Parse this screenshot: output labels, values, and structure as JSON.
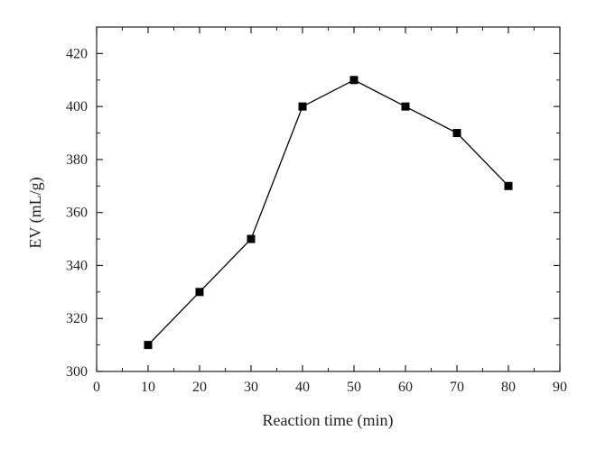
{
  "chart_data": {
    "type": "line",
    "title": "",
    "xlabel": "Reaction time (min)",
    "ylabel": "EV (mL/g)",
    "xlim": [
      0,
      90
    ],
    "ylim": [
      300,
      430
    ],
    "x_ticks": [
      0,
      10,
      20,
      30,
      40,
      50,
      60,
      70,
      80,
      90
    ],
    "y_ticks": [
      300,
      320,
      340,
      360,
      380,
      400,
      420
    ],
    "grid": false,
    "legend": "none",
    "marker": "square",
    "color": "#000000",
    "series": [
      {
        "x": [
          10,
          20,
          30,
          40,
          50,
          60,
          70,
          80
        ],
        "y": [
          310,
          330,
          350,
          400,
          410,
          400,
          390,
          370
        ]
      }
    ]
  }
}
